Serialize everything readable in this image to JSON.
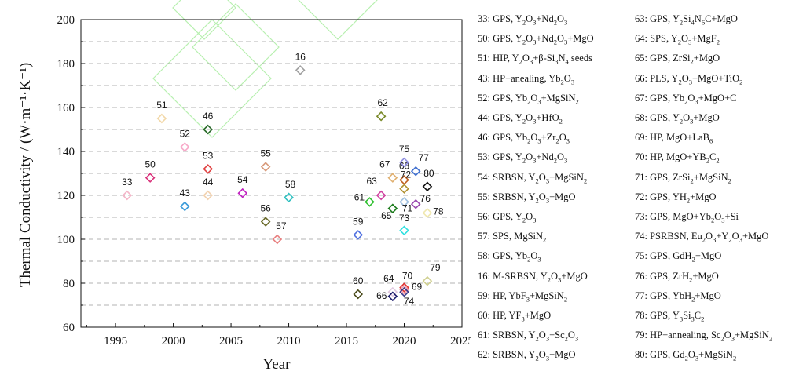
{
  "chart_data": {
    "type": "scatter",
    "title": "",
    "xlabel": "Year",
    "ylabel": "Thermal Conductivity / (W·m⁻¹·K⁻¹)",
    "xlim": [
      1992,
      2025
    ],
    "ylim": [
      60,
      200
    ],
    "xticks": [
      1995,
      2000,
      2005,
      2010,
      2015,
      2020,
      2025
    ],
    "yticks": [
      60,
      80,
      100,
      120,
      140,
      160,
      180,
      200
    ],
    "grid": "horizontal dashed every 10",
    "marker": "diamond-open",
    "points": [
      {
        "id": "33",
        "x": 1996,
        "y": 120,
        "color": "#f4b6c8"
      },
      {
        "id": "50",
        "x": 1998,
        "y": 128,
        "color": "#d9317a"
      },
      {
        "id": "51",
        "x": 1999,
        "y": 155,
        "color": "#f2d8a8"
      },
      {
        "id": "43",
        "x": 2001,
        "y": 115,
        "color": "#3a9ad9"
      },
      {
        "id": "52",
        "x": 2001,
        "y": 142,
        "color": "#f7a8c8"
      },
      {
        "id": "44",
        "x": 2003,
        "y": 120,
        "color": "#f2d2b0"
      },
      {
        "id": "46",
        "x": 2003,
        "y": 150,
        "color": "#2a6a2a"
      },
      {
        "id": "53",
        "x": 2003,
        "y": 132,
        "color": "#e04040"
      },
      {
        "id": "54",
        "x": 2006,
        "y": 121,
        "color": "#c020c0"
      },
      {
        "id": "55",
        "x": 2008,
        "y": 133,
        "color": "#d89a7a"
      },
      {
        "id": "56",
        "x": 2008,
        "y": 108,
        "color": "#6a6a2a"
      },
      {
        "id": "57",
        "x": 2009,
        "y": 100,
        "color": "#e88080"
      },
      {
        "id": "58",
        "x": 2010,
        "y": 119,
        "color": "#30c0c0"
      },
      {
        "id": "16",
        "x": 2011,
        "y": 177,
        "color": "#a0a0a0"
      },
      {
        "id": "59",
        "x": 2016,
        "y": 102,
        "color": "#5070e0"
      },
      {
        "id": "60",
        "x": 2016,
        "y": 75,
        "color": "#4a4a1a"
      },
      {
        "id": "61",
        "x": 2017,
        "y": 117,
        "color": "#30c030"
      },
      {
        "id": "62",
        "x": 2018,
        "y": 156,
        "color": "#7a8a2a"
      },
      {
        "id": "63",
        "x": 2018,
        "y": 120,
        "color": "#d040a0"
      },
      {
        "id": "64",
        "x": 2019,
        "y": 76,
        "color": "#e0c8e0"
      },
      {
        "id": "65",
        "x": 2019,
        "y": 114,
        "color": "#1a7a1a"
      },
      {
        "id": "66",
        "x": 2019,
        "y": 74,
        "color": "#1a1a6a"
      },
      {
        "id": "67",
        "x": 2019,
        "y": 128,
        "color": "#e0b070"
      },
      {
        "id": "68",
        "x": 2020,
        "y": 127,
        "color": "#c06020"
      },
      {
        "id": "69",
        "x": 2020,
        "y": 78,
        "color": "#e03030"
      },
      {
        "id": "70",
        "x": 2020,
        "y": 77,
        "color": "#f0a0b0"
      },
      {
        "id": "71",
        "x": 2020,
        "y": 117,
        "color": "#a0c0e0"
      },
      {
        "id": "72",
        "x": 2020,
        "y": 123,
        "color": "#b09030"
      },
      {
        "id": "73",
        "x": 2020,
        "y": 104,
        "color": "#30e0e0"
      },
      {
        "id": "74",
        "x": 2020,
        "y": 76,
        "color": "#3a3a8a"
      },
      {
        "id": "75",
        "x": 2020,
        "y": 135,
        "color": "#9090e0"
      },
      {
        "id": "76",
        "x": 2021,
        "y": 116,
        "color": "#9a4ab0"
      },
      {
        "id": "77",
        "x": 2021,
        "y": 131,
        "color": "#4070d0"
      },
      {
        "id": "78",
        "x": 2022,
        "y": 112,
        "color": "#f0e8b0"
      },
      {
        "id": "79",
        "x": 2022,
        "y": 81,
        "color": "#d0d090"
      },
      {
        "id": "80",
        "x": 2022,
        "y": 124,
        "color": "#111111"
      }
    ],
    "legend": [
      {
        "id": "33",
        "method": "GPS",
        "html": "Y<sub>2</sub>O<sub>3</sub>+Nd<sub>2</sub>O<sub>3</sub>"
      },
      {
        "id": "50",
        "method": "GPS",
        "html": "Y<sub>2</sub>O<sub>3</sub>+Nd<sub>2</sub>O<sub>3</sub>+MgO"
      },
      {
        "id": "51",
        "method": "HIP",
        "html": "Y<sub>2</sub>O<sub>3</sub>+β-Si<sub>3</sub>N<sub>4</sub> seeds"
      },
      {
        "id": "43",
        "method": "HP+anealing",
        "html": "Yb<sub>2</sub>O<sub>3</sub>"
      },
      {
        "id": "52",
        "method": "GPS",
        "html": "Yb<sub>2</sub>O<sub>3</sub>+MgSiN<sub>2</sub>"
      },
      {
        "id": "44",
        "method": "GPS",
        "html": "Y<sub>2</sub>O<sub>3</sub>+HfO<sub>2</sub>"
      },
      {
        "id": "46",
        "method": "GPS",
        "html": "Yb<sub>2</sub>O<sub>3</sub>+Zr<sub>2</sub>O<sub>3</sub>"
      },
      {
        "id": "53",
        "method": "GPS",
        "html": "Y<sub>2</sub>O<sub>3</sub>+Nd<sub>2</sub>O<sub>3</sub>"
      },
      {
        "id": "54",
        "method": "SRBSN",
        "html": "Y<sub>2</sub>O<sub>3</sub>+MgSiN<sub>2</sub>"
      },
      {
        "id": "55",
        "method": "SRBSN",
        "html": "Y<sub>2</sub>O<sub>3</sub>+MgO"
      },
      {
        "id": "56",
        "method": "GPS",
        "html": "Y<sub>2</sub>O<sub>3</sub>"
      },
      {
        "id": "57",
        "method": "SPS",
        "html": "MgSiN<sub>2</sub>"
      },
      {
        "id": "58",
        "method": "GPS",
        "html": "Yb<sub>2</sub>O<sub>3</sub>"
      },
      {
        "id": "16",
        "method": "M-SRBSN",
        "html": "Y<sub>2</sub>O<sub>3</sub>+MgO"
      },
      {
        "id": "59",
        "method": "HP",
        "html": "YbF<sub>3</sub>+MgSiN<sub>2</sub>"
      },
      {
        "id": "60",
        "method": "HP",
        "html": "YF<sub>3</sub>+MgO"
      },
      {
        "id": "61",
        "method": "SRBSN",
        "html": "Y<sub>2</sub>O<sub>3</sub>+Sc<sub>2</sub>O<sub>3</sub>"
      },
      {
        "id": "62",
        "method": "SRBSN",
        "html": "Y<sub>2</sub>O<sub>3</sub>+MgO"
      },
      {
        "id": "63",
        "method": "GPS",
        "html": "Y<sub>2</sub>Si<sub>4</sub>N<sub>6</sub>C+MgO"
      },
      {
        "id": "64",
        "method": "SPS",
        "html": "Y<sub>2</sub>O<sub>3</sub>+MgF<sub>2</sub>"
      },
      {
        "id": "65",
        "method": "GPS",
        "html": "ZrSi<sub>2</sub>+MgO"
      },
      {
        "id": "66",
        "method": "PLS",
        "html": "Y<sub>2</sub>O<sub>3</sub>+MgO+TiO<sub>2</sub>"
      },
      {
        "id": "67",
        "method": "GPS",
        "html": "Yb<sub>2</sub>O<sub>3</sub>+MgO+C"
      },
      {
        "id": "68",
        "method": "GPS",
        "html": "Y<sub>2</sub>O<sub>3</sub>+MgO"
      },
      {
        "id": "69",
        "method": "HP",
        "html": "MgO+LaB<sub>6</sub>"
      },
      {
        "id": "70",
        "method": "HP",
        "html": "MgO+YB<sub>2</sub>C<sub>2</sub>"
      },
      {
        "id": "71",
        "method": "GPS",
        "html": "ZrSi<sub>2</sub>+MgSiN<sub>2</sub>"
      },
      {
        "id": "72",
        "method": "GPS",
        "html": "YH<sub>2</sub>+MgO"
      },
      {
        "id": "73",
        "method": "GPS",
        "html": "MgO+Yb<sub>2</sub>O<sub>3</sub>+Si"
      },
      {
        "id": "74",
        "method": "PSRBSN",
        "html": "Eu<sub>2</sub>O<sub>3</sub>+Y<sub>2</sub>O<sub>3</sub>+MgO"
      },
      {
        "id": "75",
        "method": "GPS",
        "html": "GdH<sub>2</sub>+MgO"
      },
      {
        "id": "76",
        "method": "GPS",
        "html": "ZrH<sub>2</sub>+MgO"
      },
      {
        "id": "77",
        "method": "GPS",
        "html": "YbH<sub>2</sub>+MgO"
      },
      {
        "id": "78",
        "method": "GPS",
        "html": "Y<sub>3</sub>Si<sub>3</sub>C<sub>2</sub>"
      },
      {
        "id": "79",
        "method": "HP+annealing",
        "html": "Sc<sub>2</sub>O<sub>3</sub>+MgSiN<sub>2</sub>"
      },
      {
        "id": "80",
        "method": "GPS",
        "html": "Gd<sub>2</sub>O<sub>3</sub>+MgSiN<sub>2</sub>"
      }
    ]
  }
}
